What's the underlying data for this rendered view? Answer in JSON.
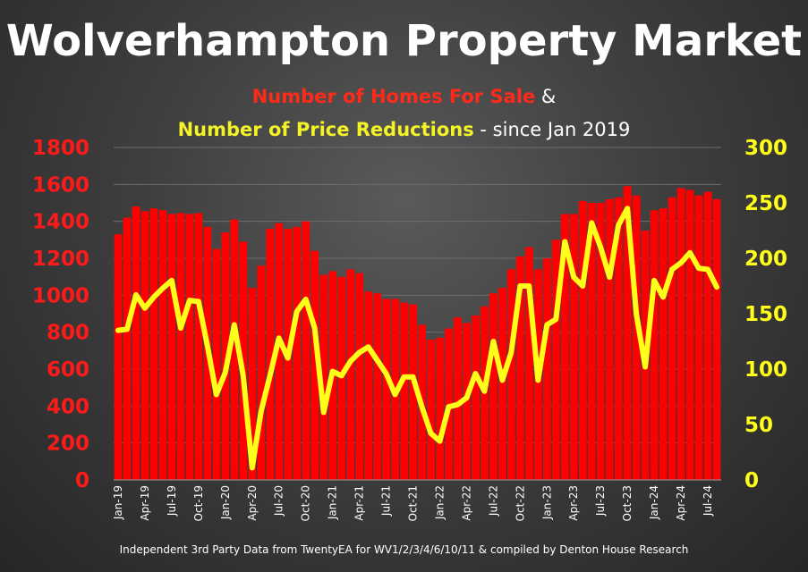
{
  "title": "Wolverhampton Property Market",
  "subtitle1": {
    "red": "Number of Homes For Sale",
    "white": " &"
  },
  "subtitle2": {
    "yellow": "Number of Price Reductions",
    "white": " - since Jan 2019"
  },
  "footer": "Independent 3rd Party Data from TwentyEA for WV1/2/3/4/6/10/11 & compiled by Denton House Research",
  "colors": {
    "bars": "#ff0000",
    "line": "#ffff1a",
    "left_axis": "#ff1a1a",
    "right_axis": "#ffff1a"
  },
  "chart_data": {
    "type": "bar",
    "x": [
      "Jan-19",
      "Feb-19",
      "Mar-19",
      "Apr-19",
      "May-19",
      "Jun-19",
      "Jul-19",
      "Aug-19",
      "Sep-19",
      "Oct-19",
      "Nov-19",
      "Dec-19",
      "Jan-20",
      "Feb-20",
      "Mar-20",
      "Apr-20",
      "May-20",
      "Jun-20",
      "Jul-20",
      "Aug-20",
      "Sep-20",
      "Oct-20",
      "Nov-20",
      "Dec-20",
      "Jan-21",
      "Feb-21",
      "Mar-21",
      "Apr-21",
      "May-21",
      "Jun-21",
      "Jul-21",
      "Aug-21",
      "Sep-21",
      "Oct-21",
      "Nov-21",
      "Dec-21",
      "Jan-22",
      "Feb-22",
      "Mar-22",
      "Apr-22",
      "May-22",
      "Jun-22",
      "Jul-22",
      "Aug-22",
      "Sep-22",
      "Oct-22",
      "Nov-22",
      "Dec-22",
      "Jan-23",
      "Feb-23",
      "Mar-23",
      "Apr-23",
      "May-23",
      "Jun-23",
      "Jul-23",
      "Aug-23",
      "Sep-23",
      "Oct-23",
      "Nov-23",
      "Dec-23",
      "Jan-24",
      "Feb-24",
      "Mar-24",
      "Apr-24",
      "May-24",
      "Jun-24",
      "Jul-24",
      "Aug-24"
    ],
    "xtick_labels": [
      "Jan-19",
      "Apr-19",
      "Jul-19",
      "Oct-19",
      "Jan-20",
      "Apr-20",
      "Jul-20",
      "Oct-20",
      "Jan-21",
      "Apr-21",
      "Jul-21",
      "Oct-21",
      "Jan-22",
      "Apr-22",
      "Jul-22",
      "Oct-22",
      "Jan-23",
      "Apr-23",
      "Jul-23",
      "Oct-23",
      "Jan-24",
      "Apr-24",
      "Jul-24"
    ],
    "series": [
      {
        "name": "Number of Homes For Sale",
        "type": "bar",
        "axis": "left",
        "values": [
          1330,
          1420,
          1480,
          1455,
          1470,
          1460,
          1440,
          1445,
          1440,
          1445,
          1370,
          1250,
          1340,
          1410,
          1290,
          1040,
          1160,
          1360,
          1390,
          1360,
          1370,
          1400,
          1240,
          1110,
          1130,
          1100,
          1140,
          1120,
          1020,
          1010,
          980,
          980,
          960,
          950,
          840,
          760,
          770,
          820,
          880,
          850,
          890,
          940,
          1010,
          1040,
          1140,
          1210,
          1260,
          1140,
          1200,
          1300,
          1440,
          1440,
          1510,
          1500,
          1500,
          1520,
          1530,
          1590,
          1540,
          1350,
          1460,
          1470,
          1530,
          1580,
          1570,
          1540,
          1560,
          1520
        ]
      },
      {
        "name": "Number of Price Reductions",
        "type": "line",
        "axis": "right",
        "values": [
          135,
          136,
          167,
          155,
          165,
          173,
          180,
          137,
          162,
          161,
          121,
          77,
          97,
          140,
          94,
          11,
          62,
          94,
          128,
          110,
          152,
          163,
          137,
          61,
          98,
          94,
          107,
          115,
          120,
          108,
          96,
          77,
          93,
          93,
          66,
          42,
          35,
          66,
          68,
          74,
          96,
          80,
          125,
          90,
          115,
          175,
          175,
          90,
          140,
          145,
          215,
          183,
          175,
          232,
          210,
          183,
          230,
          245,
          150,
          102,
          180,
          165,
          190,
          196,
          205,
          191,
          190,
          174
        ]
      }
    ],
    "ylim_left": [
      0,
      1800
    ],
    "yticks_left": [
      0,
      200,
      400,
      600,
      800,
      1000,
      1200,
      1400,
      1600,
      1800
    ],
    "ylim_right": [
      0,
      300
    ],
    "yticks_right": [
      0,
      50,
      100,
      150,
      200,
      250,
      300
    ],
    "grid": true
  }
}
